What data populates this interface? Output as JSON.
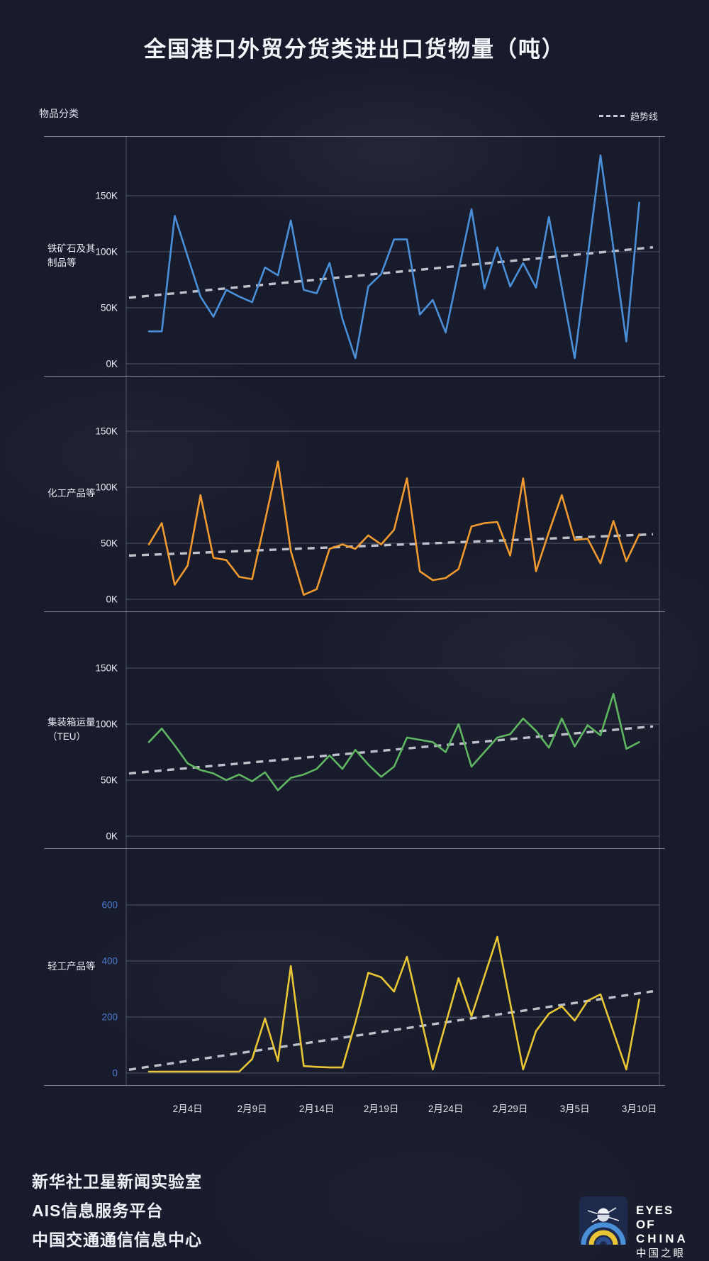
{
  "title": "全国港口外贸分货类进出口货物量（吨）",
  "legend": {
    "left_label": "物品分类",
    "trend_label": "趋势线"
  },
  "x_axis": {
    "tick_labels": [
      "2月4日",
      "2月9日",
      "2月14日",
      "2月19日",
      "2月24日",
      "2月29日",
      "3月5日",
      "3月10日"
    ],
    "tick_indices": [
      3,
      8,
      13,
      18,
      23,
      28,
      33,
      38
    ]
  },
  "colors": {
    "background": "#171b2b",
    "gridline": "rgba(170,180,200,0.38)",
    "separator": "rgba(205,213,230,0.55)",
    "trendline": "#c6cad3",
    "iron_ore_line": "#4a8fd8",
    "chemical_line": "#f09a30",
    "container_line": "#5fb561",
    "light_industry_line": "#e9c636",
    "panel4_tick_text": "#4d79d0"
  },
  "chart_data": [
    {
      "type": "line",
      "name": "铁矿石及其制品等",
      "label_lines": [
        "铁矿石及其",
        "制品等"
      ],
      "color": "#4a8fd8",
      "y_ticks": [
        "150K",
        "100K",
        "50K",
        "0K"
      ],
      "grid_values": [
        150,
        100,
        50,
        0
      ],
      "grid_step": 50,
      "ylim": [
        0,
        200
      ],
      "tick_color": "#e9edf4",
      "values": [
        29,
        29,
        132,
        96,
        60,
        42,
        66,
        60,
        55,
        86,
        79,
        128,
        66,
        63,
        90,
        40,
        5,
        69,
        80,
        111,
        111,
        44,
        57,
        28,
        83,
        138,
        67,
        104,
        69,
        90,
        68,
        131,
        68,
        5,
        95,
        186,
        103,
        20,
        144
      ],
      "trend": [
        59,
        104
      ]
    },
    {
      "type": "line",
      "name": "化工产品等",
      "label_lines": [
        "化工产品等"
      ],
      "color": "#f09a30",
      "y_ticks": [
        "150K",
        "100K",
        "50K",
        "0K"
      ],
      "grid_values": [
        150,
        100,
        50,
        0
      ],
      "grid_step": 50,
      "ylim": [
        0,
        200
      ],
      "tick_color": "#e9edf4",
      "values": [
        49,
        68,
        13,
        30,
        93,
        37,
        35,
        20,
        18,
        70,
        123,
        43,
        4,
        9,
        45,
        49,
        45,
        57,
        49,
        62,
        108,
        25,
        17,
        19,
        27,
        65,
        68,
        69,
        39,
        108,
        25,
        60,
        93,
        53,
        54,
        32,
        70,
        34,
        58
      ],
      "trend": [
        39,
        58
      ]
    },
    {
      "type": "line",
      "name": "集装箱运量（TEU）",
      "label_lines": [
        "集装箱运量",
        "（TEU）"
      ],
      "color": "#5fb561",
      "y_ticks": [
        "150K",
        "100K",
        "50K",
        "0K"
      ],
      "grid_values": [
        150,
        100,
        50,
        0
      ],
      "grid_step": 50,
      "ylim": [
        0,
        200
      ],
      "tick_color": "#e9edf4",
      "values": [
        84,
        96,
        81,
        65,
        59,
        56,
        50,
        55,
        49,
        57,
        41,
        52,
        55,
        60,
        72,
        60,
        77,
        64,
        53,
        62,
        88,
        86,
        84,
        75,
        100,
        62,
        75,
        88,
        91,
        105,
        94,
        79,
        105,
        80,
        99,
        90,
        127,
        78,
        84
      ],
      "trend": [
        56,
        98
      ]
    },
    {
      "type": "line",
      "name": "轻工产品等",
      "label_lines": [
        "轻工产品等"
      ],
      "color": "#e9c636",
      "y_ticks": [
        "600",
        "400",
        "200",
        "0"
      ],
      "grid_values": [
        600,
        400,
        200,
        0
      ],
      "grid_step": 200,
      "ylim": [
        0,
        800
      ],
      "tick_color": "#4d79d0",
      "values": [
        5,
        5,
        5,
        5,
        5,
        5,
        5,
        5,
        50,
        195,
        43,
        382,
        25,
        22,
        20,
        20,
        180,
        358,
        342,
        291,
        415,
        214,
        13,
        176,
        339,
        203,
        345,
        486,
        250,
        13,
        150,
        212,
        238,
        187,
        258,
        281,
        147,
        13,
        263
      ],
      "trend": [
        12,
        292
      ]
    }
  ],
  "footer": {
    "lines": [
      "新华社卫星新闻实验室",
      "AIS信息服务平台",
      "中国交通通信信息中心"
    ]
  },
  "logo": {
    "line1": "EYES OF",
    "line2": "CHINA",
    "line3": "中国之眼"
  }
}
